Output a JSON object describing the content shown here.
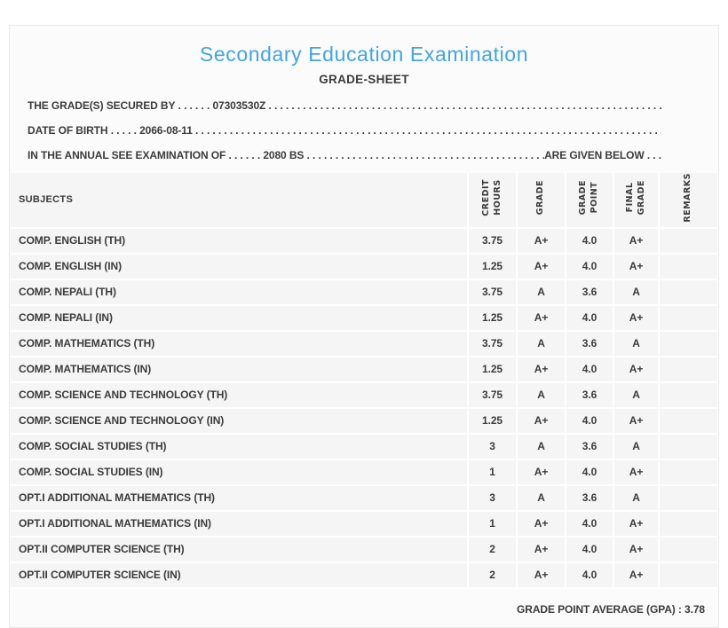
{
  "title": "Secondary Education Examination",
  "subtitle": "GRADE-SHEET",
  "info_lines": [
    {
      "label": "THE GRADE(S) SECURED BY",
      "dots_before": " . . . . . . ",
      "value": "07303530Z",
      "dots_after": " . . . . . . . . . . . . . . . . . . . . . . . . . . . . . . . . . . . . . . . . . . . . . . . . . . . . . . . . . . . . . . . . . . . . . . . . . . . . . . . . . . . . . . . . . . . ."
    },
    {
      "label": "DATE OF BIRTH",
      "dots_before": " . . . . . ",
      "value": "2066-08-11",
      "dots_after": " . . . . . . . . . . . . . . . . . . . . . . . . . . . . . . . . . . . . . . . . . . . . . . . . . . . . . . . . . . . . . . . . . . . . . . . . . . . . . . . . . . . . . . . . . . . ."
    },
    {
      "label": "IN THE ANNUAL SEE EXAMINATION OF",
      "dots_before": " . . . . . . ",
      "value": "2080 BS",
      "dots_after": " . . . . . . . . . . . . . . . . . . . . . . . . . . . . . . . . . . . . . . . . . . . . . . . . . . . . . . . . . . . . . . . . . . . . . . . . . . . . ",
      "suffix": "ARE GIVEN BELOW",
      "dots_end": " . . ."
    }
  ],
  "table": {
    "headers": {
      "subjects": "SUBJECTS",
      "credit_hours": "CREDIT\nHOURS",
      "grade": "GRADE",
      "grade_point": "GRADE\nPOINT",
      "final_grade": "FINAL\nGRADE",
      "remarks": "REMARKS"
    },
    "rows": [
      {
        "subject": "COMP. ENGLISH (TH)",
        "credit_hours": "3.75",
        "grade": "A+",
        "grade_point": "4.0",
        "final_grade": "A+",
        "remarks": ""
      },
      {
        "subject": "COMP. ENGLISH (IN)",
        "credit_hours": "1.25",
        "grade": "A+",
        "grade_point": "4.0",
        "final_grade": "A+",
        "remarks": ""
      },
      {
        "subject": "COMP. NEPALI (TH)",
        "credit_hours": "3.75",
        "grade": "A",
        "grade_point": "3.6",
        "final_grade": "A",
        "remarks": ""
      },
      {
        "subject": "COMP. NEPALI (IN)",
        "credit_hours": "1.25",
        "grade": "A+",
        "grade_point": "4.0",
        "final_grade": "A+",
        "remarks": ""
      },
      {
        "subject": "COMP. MATHEMATICS (TH)",
        "credit_hours": "3.75",
        "grade": "A",
        "grade_point": "3.6",
        "final_grade": "A",
        "remarks": ""
      },
      {
        "subject": "COMP. MATHEMATICS (IN)",
        "credit_hours": "1.25",
        "grade": "A+",
        "grade_point": "4.0",
        "final_grade": "A+",
        "remarks": ""
      },
      {
        "subject": "COMP. SCIENCE AND TECHNOLOGY (TH)",
        "credit_hours": "3.75",
        "grade": "A",
        "grade_point": "3.6",
        "final_grade": "A",
        "remarks": ""
      },
      {
        "subject": "COMP. SCIENCE AND TECHNOLOGY (IN)",
        "credit_hours": "1.25",
        "grade": "A+",
        "grade_point": "4.0",
        "final_grade": "A+",
        "remarks": ""
      },
      {
        "subject": "COMP. SOCIAL STUDIES (TH)",
        "credit_hours": "3",
        "grade": "A",
        "grade_point": "3.6",
        "final_grade": "A",
        "remarks": ""
      },
      {
        "subject": "COMP. SOCIAL STUDIES (IN)",
        "credit_hours": "1",
        "grade": "A+",
        "grade_point": "4.0",
        "final_grade": "A+",
        "remarks": ""
      },
      {
        "subject": "OPT.I ADDITIONAL MATHEMATICS (TH)",
        "credit_hours": "3",
        "grade": "A",
        "grade_point": "3.6",
        "final_grade": "A",
        "remarks": ""
      },
      {
        "subject": "OPT.I ADDITIONAL MATHEMATICS (IN)",
        "credit_hours": "1",
        "grade": "A+",
        "grade_point": "4.0",
        "final_grade": "A+",
        "remarks": ""
      },
      {
        "subject": "OPT.II COMPUTER SCIENCE (TH)",
        "credit_hours": "2",
        "grade": "A+",
        "grade_point": "4.0",
        "final_grade": "A+",
        "remarks": ""
      },
      {
        "subject": "OPT.II COMPUTER SCIENCE (IN)",
        "credit_hours": "2",
        "grade": "A+",
        "grade_point": "4.0",
        "final_grade": "A+",
        "remarks": ""
      }
    ]
  },
  "footer": {
    "gpa_label": "GRADE POINT AVERAGE (GPA) : ",
    "gpa_value": "3.78"
  },
  "colors": {
    "title_blue": "#42a4e4",
    "text": "#3b3b3b",
    "card_background": "#fbfbfb",
    "cell_background": "#f5f5f5",
    "grid_line": "#ffffff",
    "card_border": "#e9e9e9",
    "page_background": "#ffffff"
  }
}
